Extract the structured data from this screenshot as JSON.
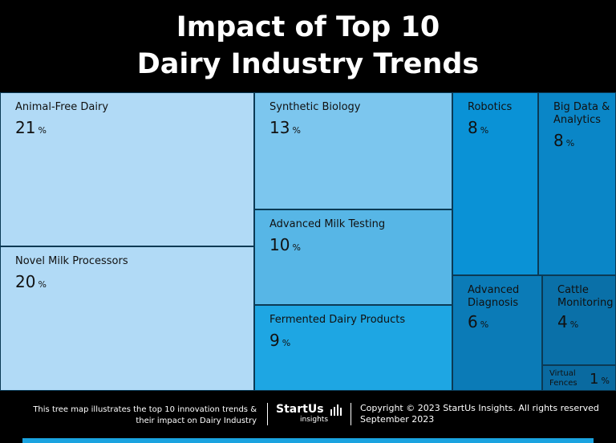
{
  "header": {
    "line1": "Impact of Top 10",
    "line2": "Dairy Industry Trends"
  },
  "chart_data": {
    "type": "treemap",
    "title": "Impact of Top 10 Dairy Industry Trends",
    "unit": "%",
    "items": [
      {
        "label": "Animal-Free Dairy",
        "value": 21,
        "color": "#b1daf6"
      },
      {
        "label": "Novel Milk Processors",
        "value": 20,
        "color": "#b1daf6"
      },
      {
        "label": "Synthetic Biology",
        "value": 13,
        "color": "#7cc6ee"
      },
      {
        "label": "Advanced Milk Testing",
        "value": 10,
        "color": "#57b6e6"
      },
      {
        "label": "Fermented Dairy Products",
        "value": 9,
        "color": "#1ea6e3"
      },
      {
        "label": "Robotics",
        "value": 8,
        "color": "#0a92d6"
      },
      {
        "label": "Big Data & Analytics",
        "value": 8,
        "color": "#0a86c7"
      },
      {
        "label": "Advanced Diagnosis",
        "value": 6,
        "color": "#0b7bb7"
      },
      {
        "label": "Cattle Monitoring",
        "value": 4,
        "color": "#0a70a8"
      },
      {
        "label": "Virtual Fences",
        "value": 1,
        "color": "#0a6aa0"
      }
    ]
  },
  "footer": {
    "description_line1": "This tree map illustrates the top 10 innovation trends &",
    "description_line2": "their impact on Dairy Industry",
    "logo_brand": "StartUs",
    "logo_sub": "insights",
    "copyright": "Copyright © 2023 StartUs Insights. All rights reserved",
    "date": "September 2023"
  }
}
